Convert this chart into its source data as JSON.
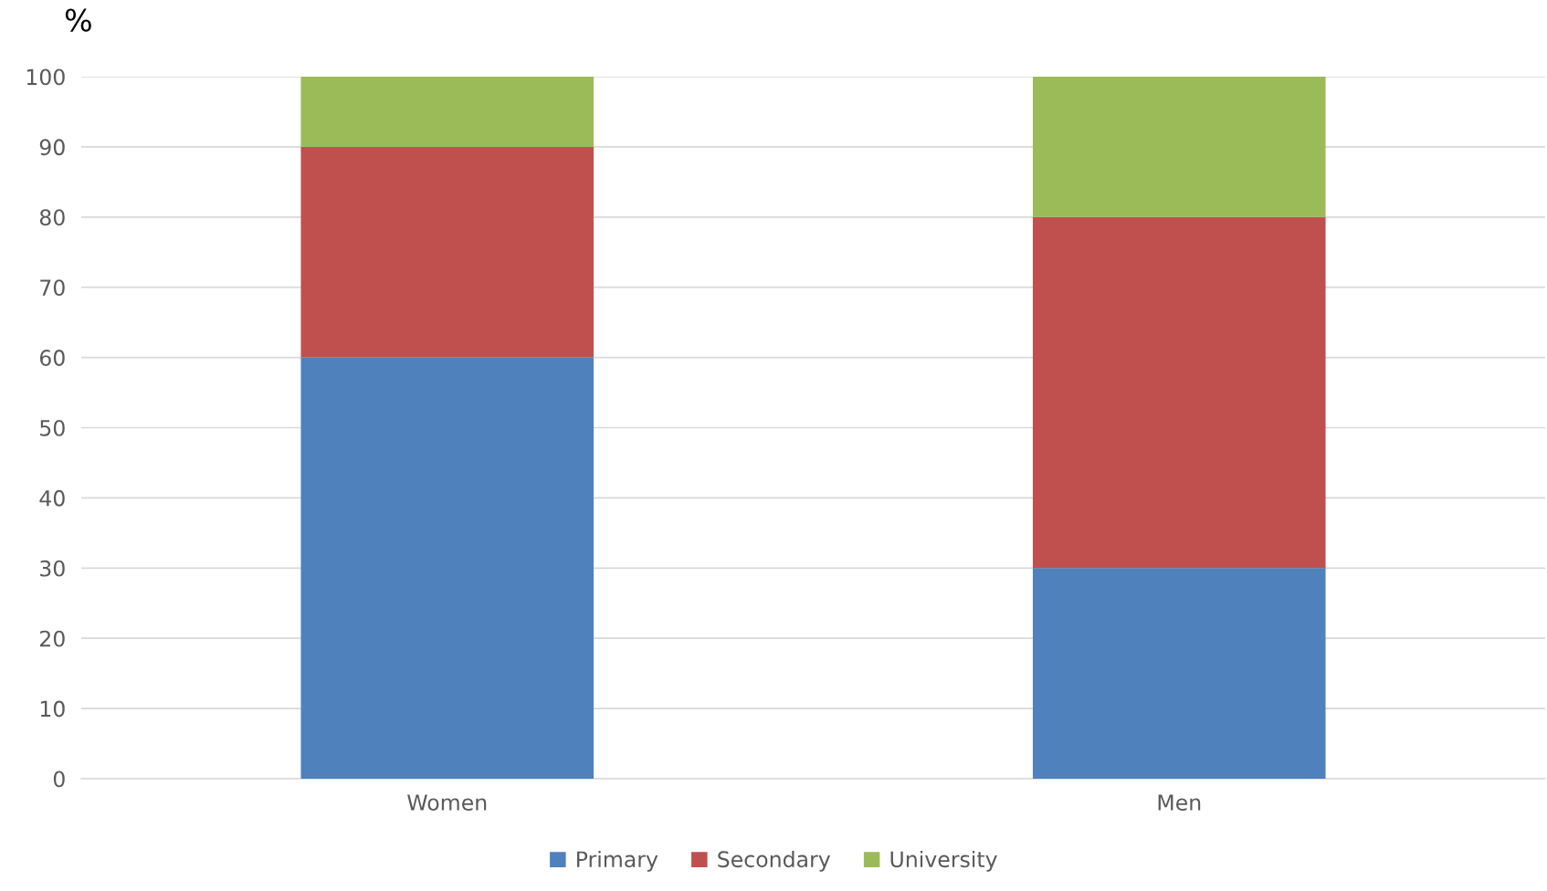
{
  "chart_data": {
    "type": "bar",
    "ylabel": "%",
    "categories": [
      "Women",
      "Men"
    ],
    "stacked": true,
    "series": [
      {
        "name": "Primary",
        "color": "#4f81bd",
        "values": [
          60,
          30
        ]
      },
      {
        "name": "Secondary",
        "color": "#c0504d",
        "values": [
          30,
          50
        ]
      },
      {
        "name": "University",
        "color": "#9bbb59",
        "values": [
          10,
          20
        ]
      }
    ],
    "ylim": [
      0,
      100
    ],
    "yticks": [
      0,
      10,
      20,
      30,
      40,
      50,
      60,
      70,
      80,
      90,
      100
    ],
    "grid": "y",
    "legend": "bottom"
  }
}
